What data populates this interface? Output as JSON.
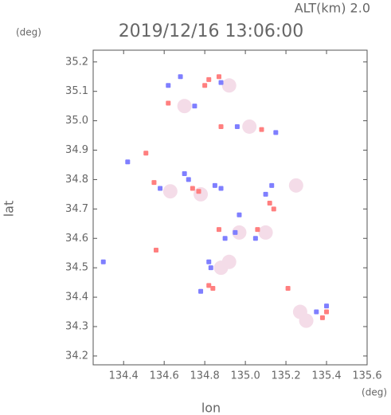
{
  "chart_data": {
    "type": "scatter",
    "title": "2019/12/16 13:06:00",
    "subtitle": "ALT(km) 2.0",
    "y_unit": "(deg)",
    "x_unit": "(deg)",
    "x_label": "lon",
    "y_label": "lat",
    "xlim": [
      134.25,
      135.6
    ],
    "ylim": [
      34.17,
      35.24
    ],
    "xticks": [
      134.4,
      134.6,
      134.8,
      {
        "value": 135,
        "label": "135.0"
      },
      135.2,
      135.4,
      135.6
    ],
    "yticks": [
      34.2,
      34.3,
      34.4,
      34.5,
      34.6,
      34.7,
      34.8,
      34.9,
      {
        "value": 35,
        "label": "35.0"
      },
      35.1,
      35.2
    ],
    "series": [
      {
        "color": "#f4dce8",
        "x": [
          134.92,
          134.88,
          135.3,
          135.27,
          134.78,
          134.63,
          135.02,
          134.92,
          134.97,
          135.1,
          134.7,
          135.25
        ],
        "values": [
          34.52,
          34.5,
          34.32,
          34.35,
          34.75,
          34.76,
          34.98,
          35.12,
          34.62,
          34.62,
          35.05,
          34.78
        ]
      },
      {
        "color": "#7f7fff",
        "x": [
          134.42,
          134.3,
          134.58,
          134.7,
          134.72,
          134.85,
          134.88,
          134.83,
          134.82,
          134.9,
          134.95,
          135.1,
          135.13,
          135.4,
          135.35,
          134.62,
          134.75,
          134.68,
          134.88,
          134.96,
          135.15,
          134.97,
          134.78,
          135.05
        ],
        "values": [
          34.86,
          34.52,
          34.77,
          34.82,
          34.8,
          34.78,
          34.77,
          34.5,
          34.52,
          34.6,
          34.62,
          34.75,
          34.78,
          34.37,
          34.35,
          35.12,
          35.05,
          35.15,
          35.13,
          34.98,
          34.96,
          34.68,
          34.42,
          34.6
        ]
      },
      {
        "color": "#ff7f7f",
        "x": [
          134.51,
          134.55,
          134.74,
          134.77,
          134.8,
          134.82,
          134.87,
          134.82,
          134.84,
          135.38,
          135.4,
          135.12,
          135.14,
          134.56,
          134.87,
          135.06,
          135.21,
          134.88,
          135.08,
          134.62
        ],
        "values": [
          34.89,
          34.79,
          34.77,
          34.76,
          35.12,
          35.14,
          35.15,
          34.44,
          34.43,
          34.33,
          34.35,
          34.72,
          34.7,
          34.56,
          34.63,
          34.63,
          34.43,
          34.98,
          34.97,
          35.06
        ]
      }
    ]
  }
}
